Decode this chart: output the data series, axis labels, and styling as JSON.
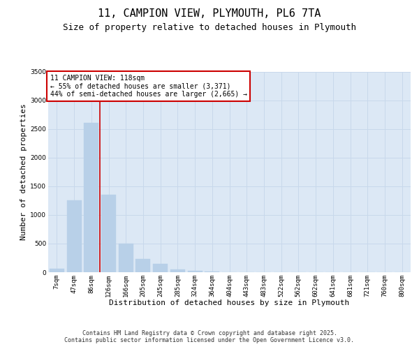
{
  "title": "11, CAMPION VIEW, PLYMOUTH, PL6 7TA",
  "subtitle": "Size of property relative to detached houses in Plymouth",
  "xlabel": "Distribution of detached houses by size in Plymouth",
  "ylabel": "Number of detached properties",
  "categories": [
    "7sqm",
    "47sqm",
    "86sqm",
    "126sqm",
    "166sqm",
    "205sqm",
    "245sqm",
    "285sqm",
    "324sqm",
    "364sqm",
    "404sqm",
    "443sqm",
    "483sqm",
    "522sqm",
    "562sqm",
    "602sqm",
    "641sqm",
    "681sqm",
    "721sqm",
    "760sqm",
    "800sqm"
  ],
  "values": [
    60,
    1250,
    2600,
    1350,
    500,
    230,
    145,
    50,
    20,
    10,
    5,
    3,
    2,
    1,
    1,
    0,
    0,
    0,
    0,
    0,
    0
  ],
  "bar_color": "#b8d0e8",
  "bar_edge_color": "#b8d0e8",
  "grid_color": "#c8d8eb",
  "bg_color": "#dce8f5",
  "annotation_text": "11 CAMPION VIEW: 118sqm\n← 55% of detached houses are smaller (3,371)\n44% of semi-detached houses are larger (2,665) →",
  "annotation_box_color": "#ffffff",
  "annotation_border_color": "#cc0000",
  "vline_color": "#cc0000",
  "ylim": [
    0,
    3500
  ],
  "yticks": [
    0,
    500,
    1000,
    1500,
    2000,
    2500,
    3000,
    3500
  ],
  "footer_line1": "Contains HM Land Registry data © Crown copyright and database right 2025.",
  "footer_line2": "Contains public sector information licensed under the Open Government Licence v3.0.",
  "title_fontsize": 11,
  "subtitle_fontsize": 9,
  "tick_fontsize": 6.5,
  "ylabel_fontsize": 8,
  "xlabel_fontsize": 8,
  "annotation_fontsize": 7,
  "footer_fontsize": 6
}
